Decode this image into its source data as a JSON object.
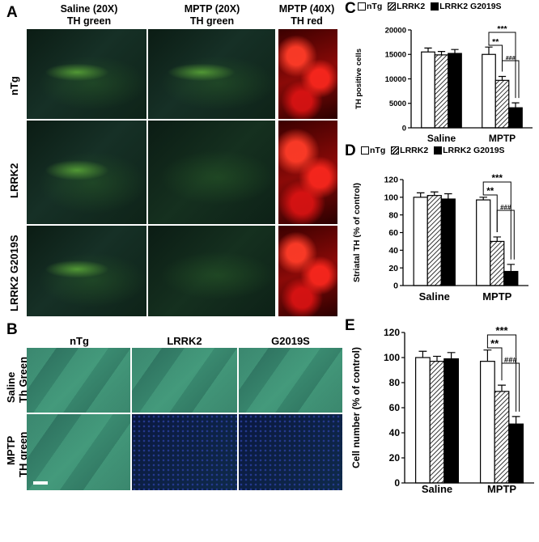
{
  "panels": {
    "a": "A",
    "b": "B",
    "c": "C",
    "d": "D",
    "e": "E"
  },
  "panel_a": {
    "columns": [
      {
        "line1": "Saline (20X)",
        "line2": "TH green"
      },
      {
        "line1": "MPTP (20X)",
        "line2": "TH green"
      },
      {
        "line1": "MPTP (40X)",
        "line2": "TH red"
      }
    ],
    "rows": [
      "nTg",
      "LRRK2",
      "LRRK2 G2019S"
    ]
  },
  "panel_b": {
    "columns": [
      "nTg",
      "LRRK2",
      "G2019S"
    ],
    "rows": [
      {
        "line1": "Saline",
        "line2": "Th Green"
      },
      {
        "line1": "MPTP",
        "line2": "TH green"
      }
    ]
  },
  "legend": [
    "nTg",
    "LRRK2",
    "LRRK2 G2019S"
  ],
  "colors": {
    "nTg": "#ffffff",
    "LRRK2": "hatched",
    "G2019S": "#000000"
  },
  "chart_data": [
    {
      "panel": "C",
      "type": "bar",
      "categories": [
        "Saline",
        "MPTP"
      ],
      "ylabel": "TH positive cells",
      "ylim": [
        0,
        20000
      ],
      "yticks": [
        0,
        5000,
        10000,
        15000,
        20000
      ],
      "series": [
        {
          "name": "nTg",
          "values": [
            15500,
            15000
          ],
          "err": [
            800,
            1500
          ]
        },
        {
          "name": "LRRK2",
          "values": [
            14900,
            9700
          ],
          "err": [
            700,
            800
          ]
        },
        {
          "name": "LRRK2 G2019S",
          "values": [
            15200,
            4100
          ],
          "err": [
            800,
            1000
          ]
        }
      ],
      "annotations": [
        "***",
        "**",
        "###"
      ]
    },
    {
      "panel": "D",
      "type": "bar",
      "categories": [
        "Saline",
        "MPTP"
      ],
      "ylabel": "Striatal TH (% of control)",
      "ylim": [
        0,
        120
      ],
      "yticks": [
        0,
        20,
        40,
        60,
        80,
        100,
        120
      ],
      "series": [
        {
          "name": "nTg",
          "values": [
            100,
            97
          ],
          "err": [
            5,
            3
          ]
        },
        {
          "name": "LRRK2",
          "values": [
            102,
            50
          ],
          "err": [
            4,
            5
          ]
        },
        {
          "name": "LRRK2 G2019S",
          "values": [
            98,
            16
          ],
          "err": [
            6,
            8
          ]
        }
      ],
      "annotations": [
        "***",
        "**",
        "###"
      ]
    },
    {
      "panel": "E",
      "type": "bar",
      "categories": [
        "Saline",
        "MPTP"
      ],
      "ylabel": "Cell number (% of control)",
      "ylim": [
        0,
        120
      ],
      "yticks": [
        0,
        20,
        40,
        60,
        80,
        100,
        120
      ],
      "series": [
        {
          "name": "nTg",
          "values": [
            100,
            97
          ],
          "err": [
            5,
            9
          ]
        },
        {
          "name": "LRRK2",
          "values": [
            97,
            73
          ],
          "err": [
            4,
            5
          ]
        },
        {
          "name": "LRRK2 G2019S",
          "values": [
            99,
            47
          ],
          "err": [
            5,
            6
          ]
        }
      ],
      "annotations": [
        "***",
        "**",
        "###"
      ]
    }
  ]
}
